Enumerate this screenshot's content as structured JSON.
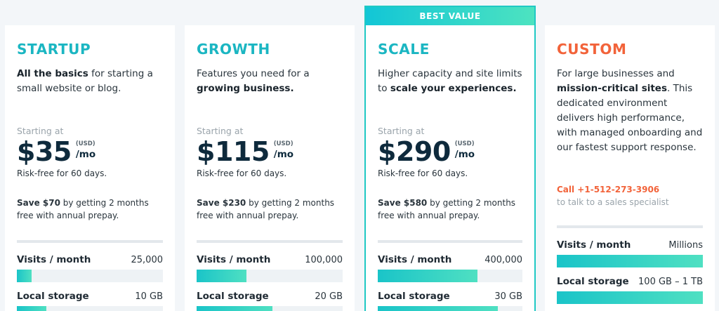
{
  "plans": [
    {
      "name": "STARTUP",
      "desc_bold_first": "All the basics",
      "desc_rest": " for starting a small website or blog.",
      "starting_label": "Starting at",
      "price": "$35",
      "currency": "(USD)",
      "period": "/mo",
      "risk_free": "Risk-free for 60 days.",
      "save_bold": "Save $70",
      "save_rest": " by getting 2 months free with annual prepay.",
      "visits_label": "Visits / month",
      "visits_value": "25,000",
      "visits_fill": 0.1,
      "storage_label": "Local storage",
      "storage_value": "10 GB",
      "storage_fill": 0.2
    },
    {
      "name": "GROWTH",
      "desc_plain": "Features you need for a ",
      "desc_bold": "growing business.",
      "starting_label": "Starting at",
      "price": "$115",
      "currency": "(USD)",
      "period": "/mo",
      "risk_free": "Risk-free for 60 days.",
      "save_bold": "Save $230",
      "save_rest": " by getting 2 months free with annual prepay.",
      "visits_label": "Visits / month",
      "visits_value": "100,000",
      "visits_fill": 0.34,
      "storage_label": "Local storage",
      "storage_value": "20 GB",
      "storage_fill": 0.52
    },
    {
      "name": "SCALE",
      "banner": "BEST VALUE",
      "desc_plain": "Higher capacity and site limits to ",
      "desc_bold": "scale your experiences.",
      "starting_label": "Starting at",
      "price": "$290",
      "currency": "(USD)",
      "period": "/mo",
      "risk_free": "Risk-free for 60 days.",
      "save_bold": "Save $580",
      "save_rest": " by getting 2 months free with annual prepay.",
      "visits_label": "Visits / month",
      "visits_value": "400,000",
      "visits_fill": 0.69,
      "storage_label": "Local storage",
      "storage_value": "30 GB",
      "storage_fill": 0.83
    },
    {
      "name": "CUSTOM",
      "desc_plain": "For large businesses and ",
      "desc_bold": "mission-critical sites",
      "desc_rest": ". This dedicated environment delivers high performance, with managed onboarding and our fastest support response.",
      "call": "Call +1-512-273-3906",
      "talk": "to talk to a sales specialist",
      "visits_label": "Visits / month",
      "visits_value": "Millions",
      "visits_fill": 1.0,
      "storage_label": "Local storage",
      "storage_value": "100 GB – 1 TB",
      "storage_fill": 1.0
    }
  ],
  "colors": {
    "accent": "#1bb6c2",
    "custom": "#f2633a",
    "price": "#0e2a3c"
  }
}
